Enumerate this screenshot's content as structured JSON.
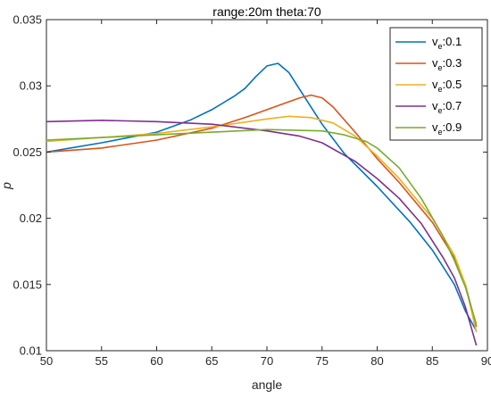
{
  "chart_data": {
    "type": "line",
    "title": "range:20m theta:70",
    "xlabel": "angle",
    "ylabel": "p",
    "xlim": [
      50,
      90
    ],
    "ylim": [
      0.01,
      0.035
    ],
    "xticks": [
      "50",
      "55",
      "60",
      "65",
      "70",
      "75",
      "80",
      "85",
      "90"
    ],
    "yticks": [
      "0.01",
      "0.015",
      "0.02",
      "0.025",
      "0.03",
      "0.035"
    ],
    "grid": false,
    "legend_position": "top-right",
    "series": [
      {
        "name_main": "v",
        "name_sub": "e",
        "name_suffix": ":0.1",
        "color": "#0072BD",
        "x": [
          50,
          55,
          60,
          63,
          65,
          67,
          68,
          69,
          70,
          71,
          72,
          73,
          75,
          77,
          80,
          83,
          85,
          87,
          88,
          89
        ],
        "y": [
          0.025,
          0.0257,
          0.0265,
          0.0274,
          0.0282,
          0.0292,
          0.0298,
          0.0307,
          0.0315,
          0.0317,
          0.031,
          0.0297,
          0.0271,
          0.0249,
          0.0224,
          0.0197,
          0.0176,
          0.015,
          0.013,
          0.0115
        ]
      },
      {
        "name_main": "v",
        "name_sub": "e",
        "name_suffix": ":0.3",
        "color": "#D95319",
        "x": [
          50,
          55,
          60,
          65,
          68,
          70,
          72,
          73,
          74,
          75,
          76,
          78,
          80,
          82,
          85,
          87,
          88,
          89
        ],
        "y": [
          0.025,
          0.0253,
          0.0259,
          0.0268,
          0.0276,
          0.0282,
          0.0288,
          0.0291,
          0.0293,
          0.0291,
          0.0284,
          0.0265,
          0.0245,
          0.0227,
          0.0197,
          0.017,
          0.015,
          0.0118
        ]
      },
      {
        "name_main": "v",
        "name_sub": "e",
        "name_suffix": ":0.5",
        "color": "#EDB120",
        "x": [
          50,
          55,
          60,
          65,
          70,
          72,
          74,
          76,
          78,
          80,
          82,
          85,
          87,
          88,
          89
        ],
        "y": [
          0.0258,
          0.0261,
          0.0264,
          0.0269,
          0.0275,
          0.0277,
          0.0276,
          0.0272,
          0.0262,
          0.0247,
          0.023,
          0.02,
          0.0172,
          0.015,
          0.0114
        ]
      },
      {
        "name_main": "v",
        "name_sub": "e",
        "name_suffix": ":0.7",
        "color": "#7E2F8E",
        "x": [
          50,
          55,
          60,
          65,
          70,
          73,
          75,
          78,
          80,
          82,
          84,
          86,
          87,
          88,
          89
        ],
        "y": [
          0.0273,
          0.0274,
          0.0273,
          0.0271,
          0.0266,
          0.0262,
          0.0257,
          0.0243,
          0.023,
          0.0215,
          0.0196,
          0.017,
          0.0155,
          0.0133,
          0.0104
        ]
      },
      {
        "name_main": "v",
        "name_sub": "e",
        "name_suffix": ":0.9",
        "color": "#77AC30",
        "x": [
          50,
          55,
          60,
          65,
          70,
          75,
          77,
          79,
          80,
          82,
          84,
          86,
          87,
          88,
          89
        ],
        "y": [
          0.0259,
          0.0261,
          0.0263,
          0.0265,
          0.0267,
          0.0266,
          0.0263,
          0.0258,
          0.0253,
          0.0238,
          0.0215,
          0.0186,
          0.0168,
          0.0148,
          0.012
        ]
      }
    ]
  }
}
